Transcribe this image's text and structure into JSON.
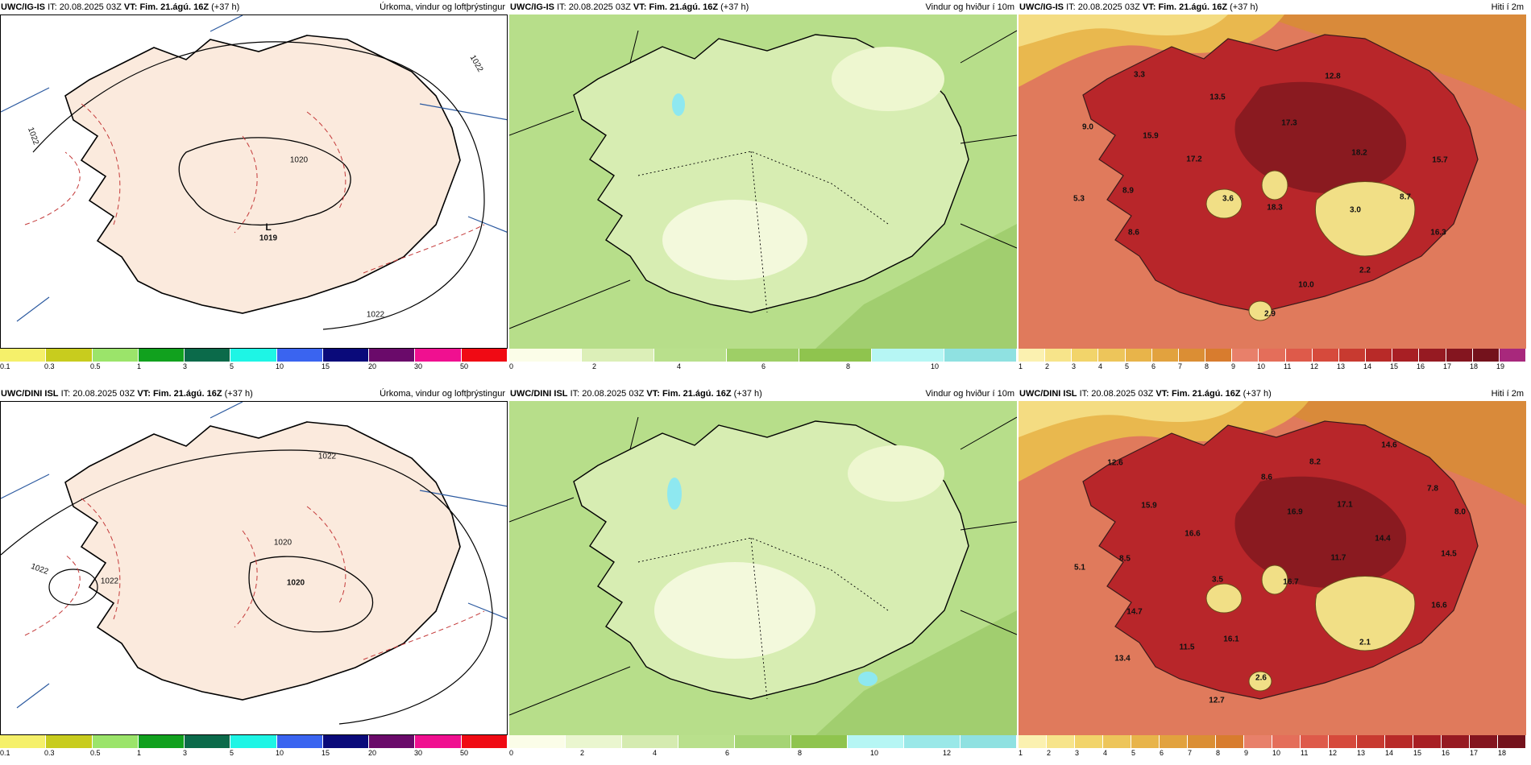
{
  "rows": [
    {
      "model": "UWC/IG-IS",
      "it_label": "IT:",
      "it_value": "20.08.2025 03Z",
      "vt_label": "VT:",
      "vt_value": "Fim. 21.ágú. 16Z",
      "offset": "(+37 h)",
      "precip": {
        "title": "Úrkoma, vindur og loftþrýstingur",
        "colorbar": [
          "#f5f06a",
          "#c8cc1e",
          "#9be46a",
          "#11a11e",
          "#0b6a4a",
          "#1ef5e5",
          "#3a64f0",
          "#0a0a7a",
          "#6a0a6a",
          "#f01090",
          "#f00a14"
        ],
        "ticks": [
          "0.1",
          "0.3",
          "0.5",
          "1",
          "3",
          "5",
          "10",
          "15",
          "20",
          "30",
          "50"
        ],
        "isobar_labels": [
          "1020",
          "1019",
          "1022",
          "1022",
          "1022"
        ],
        "low_symbol": "L"
      },
      "wind": {
        "title": "Vindur og hviður í 10m",
        "colorbar": [
          "#fbfde8",
          "#dcefb8",
          "#b9e08c",
          "#9ecf66",
          "#8fc44e",
          "#b6f6f4",
          "#8fe1e1"
        ],
        "ticks": [
          "0",
          "2",
          "4",
          "6",
          "8",
          "10"
        ]
      },
      "temp": {
        "title": "Hiti í 2m",
        "colorbar": [
          "#fbf1b0",
          "#f7e48a",
          "#f2d46a",
          "#edc55a",
          "#e8b44a",
          "#e2a23e",
          "#db8e34",
          "#d87c2e",
          "#e8806a",
          "#e46e5a",
          "#de5a4a",
          "#d64a3c",
          "#c83a30",
          "#b82a28",
          "#a81f24",
          "#961a22",
          "#84151f",
          "#74121c",
          "#a8287c"
        ],
        "ticks": [
          "1",
          "2",
          "3",
          "4",
          "5",
          "6",
          "7",
          "8",
          "9",
          "10",
          "11",
          "12",
          "13",
          "14",
          "15",
          "16",
          "17",
          "18",
          "19"
        ],
        "values": [
          "3.3",
          "12.8",
          "13.5",
          "9.0",
          "15.9",
          "17.3",
          "18.2",
          "15.7",
          "17.2",
          "5.3",
          "8.9",
          "3.6",
          "18.3",
          "3.0",
          "8.7",
          "8.6",
          "16.3",
          "2.2",
          "10.0",
          "2.9"
        ]
      }
    },
    {
      "model": "UWC/DINI ISL",
      "it_label": "IT:",
      "it_value": "20.08.2025 03Z",
      "vt_label": "VT:",
      "vt_value": "Fim. 21.ágú. 16Z",
      "offset": "(+37 h)",
      "precip": {
        "title": "Úrkoma, vindur og loftþrýstingur",
        "colorbar": [
          "#f5f06a",
          "#c8cc1e",
          "#9be46a",
          "#11a11e",
          "#0b6a4a",
          "#1ef5e5",
          "#3a64f0",
          "#0a0a7a",
          "#6a0a6a",
          "#f01090",
          "#f00a14"
        ],
        "ticks": [
          "0.1",
          "0.3",
          "0.5",
          "1",
          "3",
          "5",
          "10",
          "15",
          "20",
          "30",
          "50"
        ],
        "isobar_labels": [
          "1020",
          "1020",
          "1022",
          "1022",
          "1022"
        ],
        "low_symbol": ""
      },
      "wind": {
        "title": "Vindur og hviður í 10m",
        "colorbar": [
          "#fbfde8",
          "#eaf6cf",
          "#d5ebb0",
          "#b9e08c",
          "#a5d474",
          "#8fc44e",
          "#b6f6f4",
          "#9ae8e8",
          "#8fe1e1"
        ],
        "ticks": [
          "0",
          "2",
          "4",
          "6",
          "8",
          "10",
          "12"
        ]
      },
      "temp": {
        "title": "Hiti í 2m",
        "colorbar": [
          "#fbf1b0",
          "#f7e48a",
          "#f2d46a",
          "#edc55a",
          "#e8b44a",
          "#e2a23e",
          "#db8e34",
          "#d87c2e",
          "#e8806a",
          "#e46e5a",
          "#de5a4a",
          "#d64a3c",
          "#c83a30",
          "#b82a28",
          "#a81f24",
          "#961a22",
          "#84151f",
          "#74121c"
        ],
        "ticks": [
          "1",
          "2",
          "3",
          "4",
          "5",
          "6",
          "7",
          "8",
          "9",
          "10",
          "11",
          "12",
          "13",
          "14",
          "15",
          "16",
          "17",
          "18"
        ],
        "values": [
          "12.6",
          "14.6",
          "8.6",
          "8.2",
          "7.8",
          "15.9",
          "16.9",
          "17.1",
          "8.0",
          "16.6",
          "5.1",
          "8.5",
          "3.5",
          "16.7",
          "11.7",
          "14.4",
          "14.5",
          "14.7",
          "16.6",
          "16.1",
          "2.1",
          "11.5",
          "13.4",
          "2.6",
          "12.7"
        ]
      }
    }
  ]
}
